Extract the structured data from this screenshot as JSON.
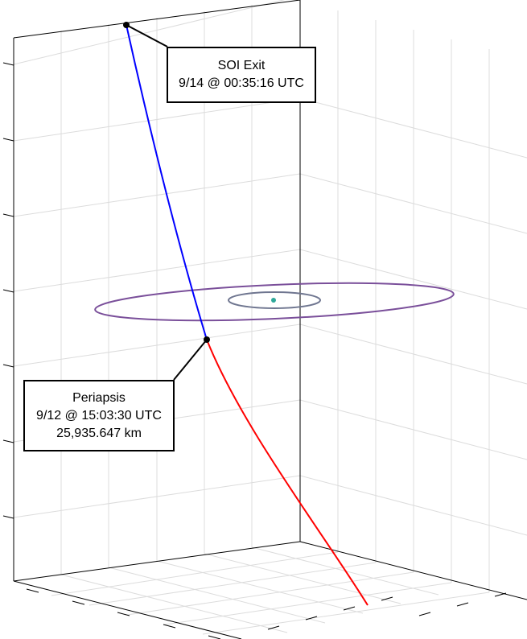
{
  "colors": {
    "background": "#ffffff",
    "grid": "#dcdcdc",
    "frame": "#000000",
    "incoming_leg": "#ff0000",
    "outgoing_leg": "#0000ff",
    "large_orbit": "#7a4f9a",
    "small_orbit": "#6f7690",
    "body": "#2fa89a",
    "event_marker": "#000000"
  },
  "annotations": {
    "soi_exit": {
      "title": "SOI Exit",
      "time": "9/14 @ 00:35:16 UTC"
    },
    "periapsis": {
      "title": "Periapsis",
      "time": "9/12 @ 15:03:30 UTC",
      "altitude": "25,935.647 km"
    }
  },
  "plot": {
    "type": "3d-trajectory",
    "grid": true,
    "tick_labels_visible": false
  }
}
